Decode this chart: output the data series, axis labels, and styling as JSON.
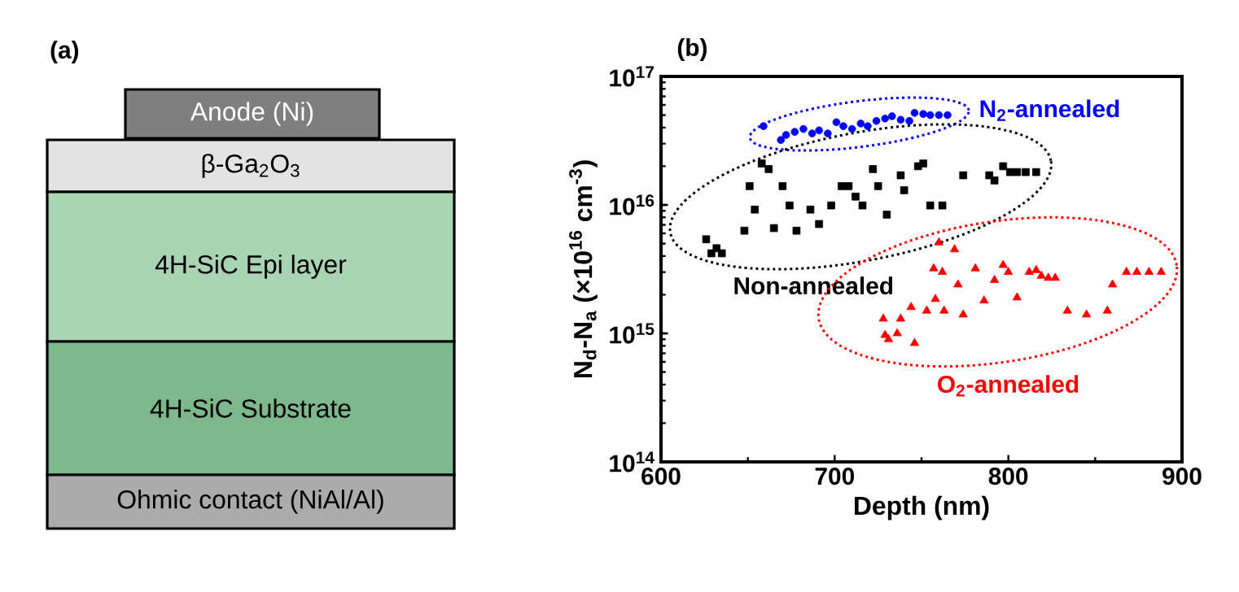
{
  "chart_data": [
    {
      "type": "other",
      "title": "(a)",
      "annotations": [
        "Anode (Ni)",
        "β-Ga$_{2}$O$_{3}$",
        "4H-SiC Epi layer",
        "4H-SiC Substrate",
        "Ohmic contact (NiAl/Al)"
      ]
    },
    {
      "type": "scatter",
      "title": "(b)",
      "xlabel": "Depth (nm)",
      "ylabel": "N$_{d}$-N$_{a}$ (×10$^{16}$ cm$^{-3}$)",
      "log": "y",
      "grid": false,
      "xlim": [
        600,
        900
      ],
      "xticks": [
        600,
        700,
        800,
        900
      ],
      "ylim": [
        100000000000000.0,
        1e+17
      ],
      "yticks": [
        {
          "value": 100000000000000.0,
          "label": "10$^{14}$"
        },
        {
          "value": 1000000000000000.0,
          "label": "10$^{15}$"
        },
        {
          "value": 1e+16,
          "label": "10$^{16}$"
        },
        {
          "value": 1e+17,
          "label": "10$^{17}$"
        }
      ],
      "series": [
        {
          "name": "N$_{2}$-annealed",
          "color": "#0000ff",
          "marker": "circle",
          "x": [
            659,
            669,
            672,
            677,
            682,
            687,
            691,
            696,
            701,
            705,
            710,
            715,
            719,
            724,
            729,
            733,
            738,
            743,
            746,
            751,
            755,
            760,
            765
          ],
          "values": [
            4.1e+16,
            3.2e+16,
            3.5e+16,
            3.7e+16,
            3.9e+16,
            3.6e+16,
            3.8e+16,
            3.6e+16,
            4.4e+16,
            4.1e+16,
            3.9e+16,
            4.3e+16,
            4.1e+16,
            4.5e+16,
            4.7e+16,
            4.9e+16,
            4.6e+16,
            4.5e+16,
            5.2e+16,
            5.1e+16,
            5e+16,
            5e+16,
            5e+16
          ]
        },
        {
          "name": "Non-annealed",
          "color": "#000000",
          "marker": "square",
          "x": [
            658,
            662,
            651,
            670,
            654,
            674,
            686,
            698,
            704,
            708,
            712,
            716,
            722,
            725,
            730,
            738,
            740,
            748,
            751,
            755,
            762,
            774,
            789,
            792,
            797,
            801,
            805,
            810,
            816,
            648,
            665,
            678,
            691,
            626,
            629,
            632,
            635
          ],
          "values": [
            2.1e+16,
            1.9e+16,
            1.4e+16,
            1.4e+16,
            9200000000000000.0,
            9900000000000000.0,
            9200000000000000.0,
            9900000000000000.0,
            1.4e+16,
            1.4e+16,
            1.16e+16,
            9900000000000000.0,
            1.9e+16,
            1.4e+16,
            8400000000000000.0,
            1.7e+16,
            1.3e+16,
            2e+16,
            2.1e+16,
            9900000000000000.0,
            9900000000000000.0,
            1.7e+16,
            1.7e+16,
            1.55e+16,
            2e+16,
            1.8e+16,
            1.8e+16,
            1.8e+16,
            1.8e+16,
            6300000000000000.0,
            6600000000000000.0,
            6300000000000000.0,
            7100000000000000.0,
            5400000000000000.0,
            4200000000000000.0,
            4600000000000000.0,
            4200000000000000.0
          ]
        },
        {
          "name": "O$_{2}$-annealed",
          "color": "#ff0000",
          "marker": "triangle",
          "x": [
            760,
            769,
            757,
            762,
            771,
            781,
            792,
            797,
            800,
            786,
            805,
            812,
            816,
            819,
            823,
            827,
            860,
            868,
            874,
            881,
            888,
            744,
            758,
            753,
            763,
            774,
            728,
            738,
            729,
            731,
            736,
            746,
            834,
            845,
            857
          ],
          "values": [
            5100000000000000.0,
            4500000000000000.0,
            3200000000000000.0,
            3000000000000000.0,
            2400000000000000.0,
            3200000000000000.0,
            2600000000000000.0,
            3400000000000000.0,
            3000000000000000.0,
            1800000000000000.0,
            1900000000000000.0,
            3000000000000000.0,
            3100000000000000.0,
            2800000000000000.0,
            2700000000000000.0,
            2700000000000000.0,
            2400000000000000.0,
            3000000000000000.0,
            3000000000000000.0,
            3000000000000000.0,
            3000000000000000.0,
            1600000000000000.0,
            1850000000000000.0,
            1500000000000000.0,
            1500000000000000.0,
            1400000000000000.0,
            1300000000000000.0,
            1300000000000000.0,
            970000000000000.0,
            900000000000000.0,
            1000000000000000.0,
            840000000000000.0,
            1500000000000000.0,
            1400000000000000.0,
            1500000000000000.0
          ]
        }
      ]
    }
  ]
}
